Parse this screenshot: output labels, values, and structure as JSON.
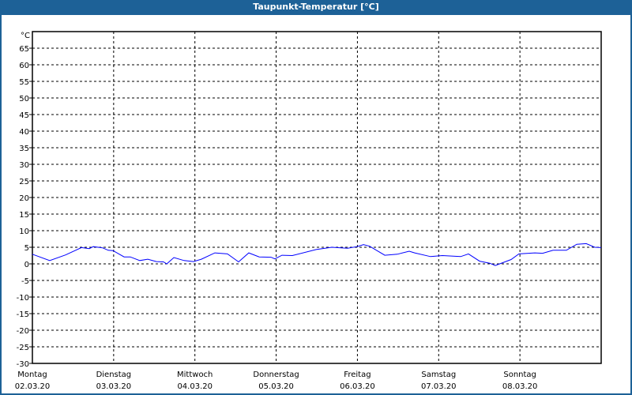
{
  "title": "Taupunkt-Temperatur [°C]",
  "colors": {
    "header": "#1d6197",
    "line": "#0000ff",
    "grid": "#000000"
  },
  "chart_data": {
    "type": "line",
    "title": "Taupunkt-Temperatur [°C]",
    "ylabel": "°C",
    "xlabel": "",
    "ylim": [
      -30,
      70
    ],
    "yticks": [
      65,
      60,
      55,
      50,
      45,
      40,
      35,
      30,
      25,
      20,
      15,
      10,
      5,
      0,
      -5,
      -10,
      -15,
      -20,
      -25,
      -30
    ],
    "xlim_hours": [
      0,
      168
    ],
    "grid": true,
    "x_categories": [
      {
        "day": "Montag",
        "date": "02.03.20"
      },
      {
        "day": "Dienstag",
        "date": "03.03.20"
      },
      {
        "day": "Mittwoch",
        "date": "04.03.20"
      },
      {
        "day": "Donnerstag",
        "date": "05.03.20"
      },
      {
        "day": "Freitag",
        "date": "06.03.20"
      },
      {
        "day": "Samstag",
        "date": "07.03.20"
      },
      {
        "day": "Sonntag",
        "date": "08.03.20"
      }
    ],
    "series": [
      {
        "name": "Taupunkt",
        "points_hours_value": [
          [
            0,
            2.9
          ],
          [
            5.1,
            1.0
          ],
          [
            9.8,
            2.7
          ],
          [
            14.5,
            4.9
          ],
          [
            16.8,
            4.6
          ],
          [
            18,
            5.2
          ],
          [
            20.8,
            4.8
          ],
          [
            22.4,
            4.1
          ],
          [
            23.8,
            4.0
          ],
          [
            27.1,
            2.1
          ],
          [
            28.9,
            2.1
          ],
          [
            31.7,
            1.0
          ],
          [
            34.1,
            1.4
          ],
          [
            36.6,
            0.7
          ],
          [
            38.7,
            0.6
          ],
          [
            39.7,
            0.0
          ],
          [
            41.8,
            1.9
          ],
          [
            44.8,
            1.0
          ],
          [
            47.6,
            0.7
          ],
          [
            49.9,
            1.4
          ],
          [
            53.9,
            3.3
          ],
          [
            57.6,
            3.0
          ],
          [
            60.9,
            0.6
          ],
          [
            63.9,
            3.3
          ],
          [
            67,
            2.1
          ],
          [
            70.5,
            2.0
          ],
          [
            71.6,
            1.5
          ],
          [
            73.7,
            2.6
          ],
          [
            76.8,
            2.5
          ],
          [
            83.8,
            4.3
          ],
          [
            88.4,
            5.0
          ],
          [
            93.1,
            4.7
          ],
          [
            95.9,
            5.2
          ],
          [
            97.8,
            5.8
          ],
          [
            99.6,
            5.3
          ],
          [
            104.1,
            2.6
          ],
          [
            107.8,
            2.9
          ],
          [
            111.3,
            3.8
          ],
          [
            112.9,
            3.3
          ],
          [
            117.6,
            2.2
          ],
          [
            121.1,
            2.5
          ],
          [
            126.5,
            2.2
          ],
          [
            128.8,
            3.0
          ],
          [
            132.1,
            0.8
          ],
          [
            135.1,
            0.2
          ],
          [
            136.7,
            -0.5
          ],
          [
            141.4,
            1.3
          ],
          [
            143.7,
            3.0
          ],
          [
            148.4,
            3.3
          ],
          [
            150.7,
            3.2
          ],
          [
            153.8,
            4.1
          ],
          [
            157.7,
            4.1
          ],
          [
            160.8,
            5.9
          ],
          [
            163.6,
            6.1
          ],
          [
            166.1,
            5.0
          ],
          [
            168,
            4.9
          ]
        ]
      }
    ]
  }
}
